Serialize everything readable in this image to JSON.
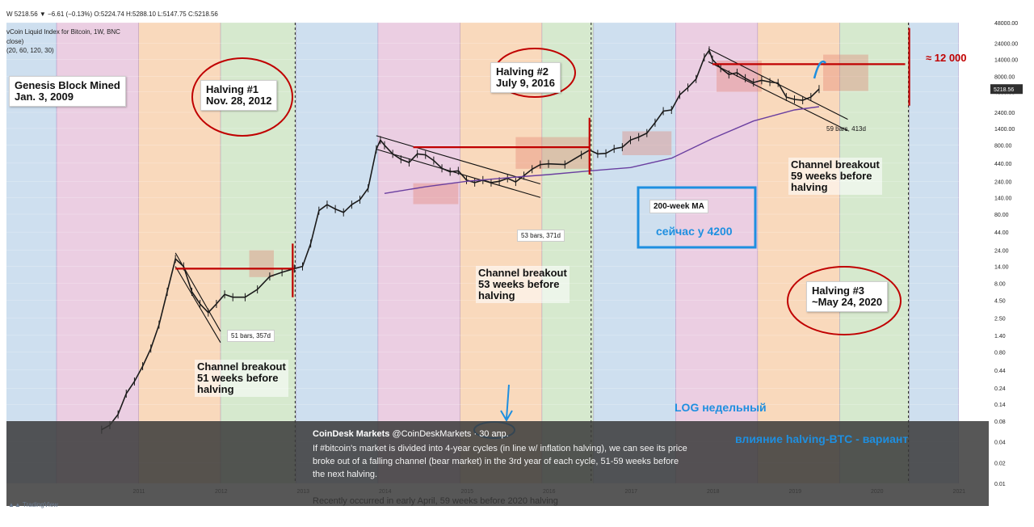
{
  "header": {
    "ohlc_line": "W  5218.56 ▼ −6.61 (−0.13%) O:5224.74 H:5288.10 L:5147.75 C:5218.56",
    "index_line": "vCoin Liquid Index for Bitcoin, 1W, BNC",
    "close_line": "close)",
    "params_line": "(20, 60, 120, 30)"
  },
  "chart_data": {
    "type": "line",
    "scale": "log",
    "title": "",
    "xlabel": "",
    "ylabel": "",
    "x_ticks": [
      "2011",
      "2012",
      "2013",
      "2014",
      "2015",
      "2016",
      "2017",
      "2018",
      "2019",
      "2020",
      "2021"
    ],
    "y_ticks": [
      "48000.00",
      "24000.00",
      "14000.00",
      "8000.00",
      "4800.00",
      "2400.00",
      "1400.00",
      "800.00",
      "440.00",
      "240.00",
      "140.00",
      "80.00",
      "44.00",
      "24.00",
      "14.00",
      "8.00",
      "4.50",
      "2.50",
      "1.40",
      "0.80",
      "0.44",
      "0.24",
      "0.14",
      "0.08",
      "0.04",
      "0.02",
      "0.01"
    ],
    "ylim": [
      0.01,
      48000
    ],
    "price_marker": "5218.56",
    "series": [
      {
        "x": [
          2010.55,
          2010.65,
          2010.75,
          2010.85,
          2010.95,
          2011.05,
          2011.15,
          2011.25,
          2011.35,
          2011.45,
          2011.55,
          2011.65,
          2011.75,
          2011.85,
          2011.95,
          2012.05,
          2012.15,
          2012.3,
          2012.45,
          2012.6,
          2012.75,
          2012.9,
          2013.0,
          2013.1,
          2013.2,
          2013.3,
          2013.4,
          2013.5,
          2013.6,
          2013.7,
          2013.8,
          2013.9,
          2013.95,
          2014.0,
          2014.1,
          2014.2,
          2014.3,
          2014.4,
          2014.5,
          2014.6,
          2014.7,
          2014.8,
          2014.9,
          2015.0,
          2015.1,
          2015.2,
          2015.3,
          2015.4,
          2015.5,
          2015.6,
          2015.7,
          2015.8,
          2015.9,
          2016.0,
          2016.2,
          2016.4,
          2016.5,
          2016.6,
          2016.7,
          2016.8,
          2016.9,
          2017.0,
          2017.1,
          2017.2,
          2017.3,
          2017.4,
          2017.5,
          2017.6,
          2017.7,
          2017.8,
          2017.9,
          2017.96,
          2018.0,
          2018.1,
          2018.2,
          2018.3,
          2018.4,
          2018.5,
          2018.6,
          2018.7,
          2018.8,
          2018.9,
          2019.0,
          2019.1,
          2019.2,
          2019.3
        ],
        "y": [
          0.06,
          0.07,
          0.1,
          0.2,
          0.3,
          0.5,
          0.9,
          2.0,
          6.0,
          18.0,
          14.0,
          6.0,
          4.0,
          3.0,
          4.0,
          5.5,
          5.0,
          5.0,
          6.5,
          10.0,
          11.5,
          13.0,
          14.0,
          30.0,
          90.0,
          110.0,
          95.0,
          85.0,
          110.0,
          130.0,
          190.0,
          700.0,
          950.0,
          800.0,
          600.0,
          500.0,
          450.0,
          600.0,
          580.0,
          480.0,
          370.0,
          330.0,
          340.0,
          250.0,
          230.0,
          250.0,
          230.0,
          240.0,
          265.0,
          235.0,
          290.0,
          360.0,
          420.0,
          430.0,
          420.0,
          580.0,
          680.0,
          600.0,
          610.0,
          710.0,
          750.0,
          950.0,
          1050.0,
          1200.0,
          1700.0,
          2500.0,
          2600.0,
          4300.0,
          5500.0,
          7300.0,
          15000.0,
          19000.0,
          14000.0,
          10500.0,
          8500.0,
          9000.0,
          7500.0,
          6500.0,
          7000.0,
          6600.0,
          6400.0,
          4000.0,
          3700.0,
          3600.0,
          4000.0,
          5218.56
        ]
      },
      {
        "name": "200-week MA",
        "x": [
          2014.0,
          2014.5,
          2015.0,
          2015.5,
          2016.0,
          2016.5,
          2017.0,
          2017.5,
          2018.0,
          2018.5,
          2019.0,
          2019.3
        ],
        "y": [
          160,
          200,
          240,
          270,
          300,
          340,
          380,
          520,
          1000,
          1800,
          2600,
          2900
        ]
      }
    ],
    "halvings": [
      {
        "label": "Halving #1\nNov. 28, 2012",
        "x": 2012.91
      },
      {
        "label": "Halving #2\nJuly 9, 2016",
        "x": 2016.52
      },
      {
        "label": "Halving #3\n~May 24, 2020",
        "x": 2020.39
      }
    ],
    "annotations": [
      {
        "text": "Genesis Block Mined\nJan. 3, 2009"
      },
      {
        "text": "Channel breakout\n51 weeks before\nhalving"
      },
      {
        "text": "Channel breakout\n53 weeks before\nhalving"
      },
      {
        "text": "Channel breakout\n59 weeks before\nhalving"
      },
      {
        "text": "200-week MA"
      },
      {
        "text": "51 bars, 357d"
      },
      {
        "text": "53 bars, 371d"
      },
      {
        "text": "59 bars, 413d"
      }
    ]
  },
  "annotations_ru": {
    "price_level": "≈ 12 000",
    "now_near": "сейчас у 4200",
    "log_weekly": "LOG   недельный",
    "variant": "влияние halving-BTC - вариант"
  },
  "labels": {
    "genesis": "Genesis Block Mined\nJan. 3, 2009",
    "halving1": "Halving #1\nNov. 28, 2012",
    "halving2": "Halving #2\nJuly 9, 2016",
    "halving3": "Halving #3\n~May 24, 2020",
    "breakout1": "Channel breakout\n51 weeks before\nhalving",
    "breakout2": "Channel breakout\n53 weeks before\nhalving",
    "breakout3": "Channel breakout\n59 weeks before\nhalving",
    "ma200": "200-week MA",
    "bars1": "51 bars, 357d",
    "bars2": "53 bars, 371d",
    "bars3": "59 bars, 413d"
  },
  "tweet": {
    "author": "CoinDesk Markets",
    "handle": "@CoinDeskMarkets",
    "date": "· 30 апр.",
    "body": "If #bitcoin's market is divided into 4-year cycles (in line w/ inflation halving), we can see its price broke out of a falling channel (bear market) in the 3rd year of each cycle, 51-59 weeks before the next halving.",
    "footer": "Recently occurred in early April, 59 weeks before 2020 halving"
  },
  "branding": {
    "tradingview": "TradingView"
  },
  "colors": {
    "band_purple": "#e7c6dd",
    "band_orange": "#f8d2b0",
    "band_green": "#cfe5c6",
    "band_blue": "#c6d9ec",
    "red": "#c00000",
    "blue_annot": "#1e8fe0",
    "ma_line": "#6a3fa0"
  }
}
